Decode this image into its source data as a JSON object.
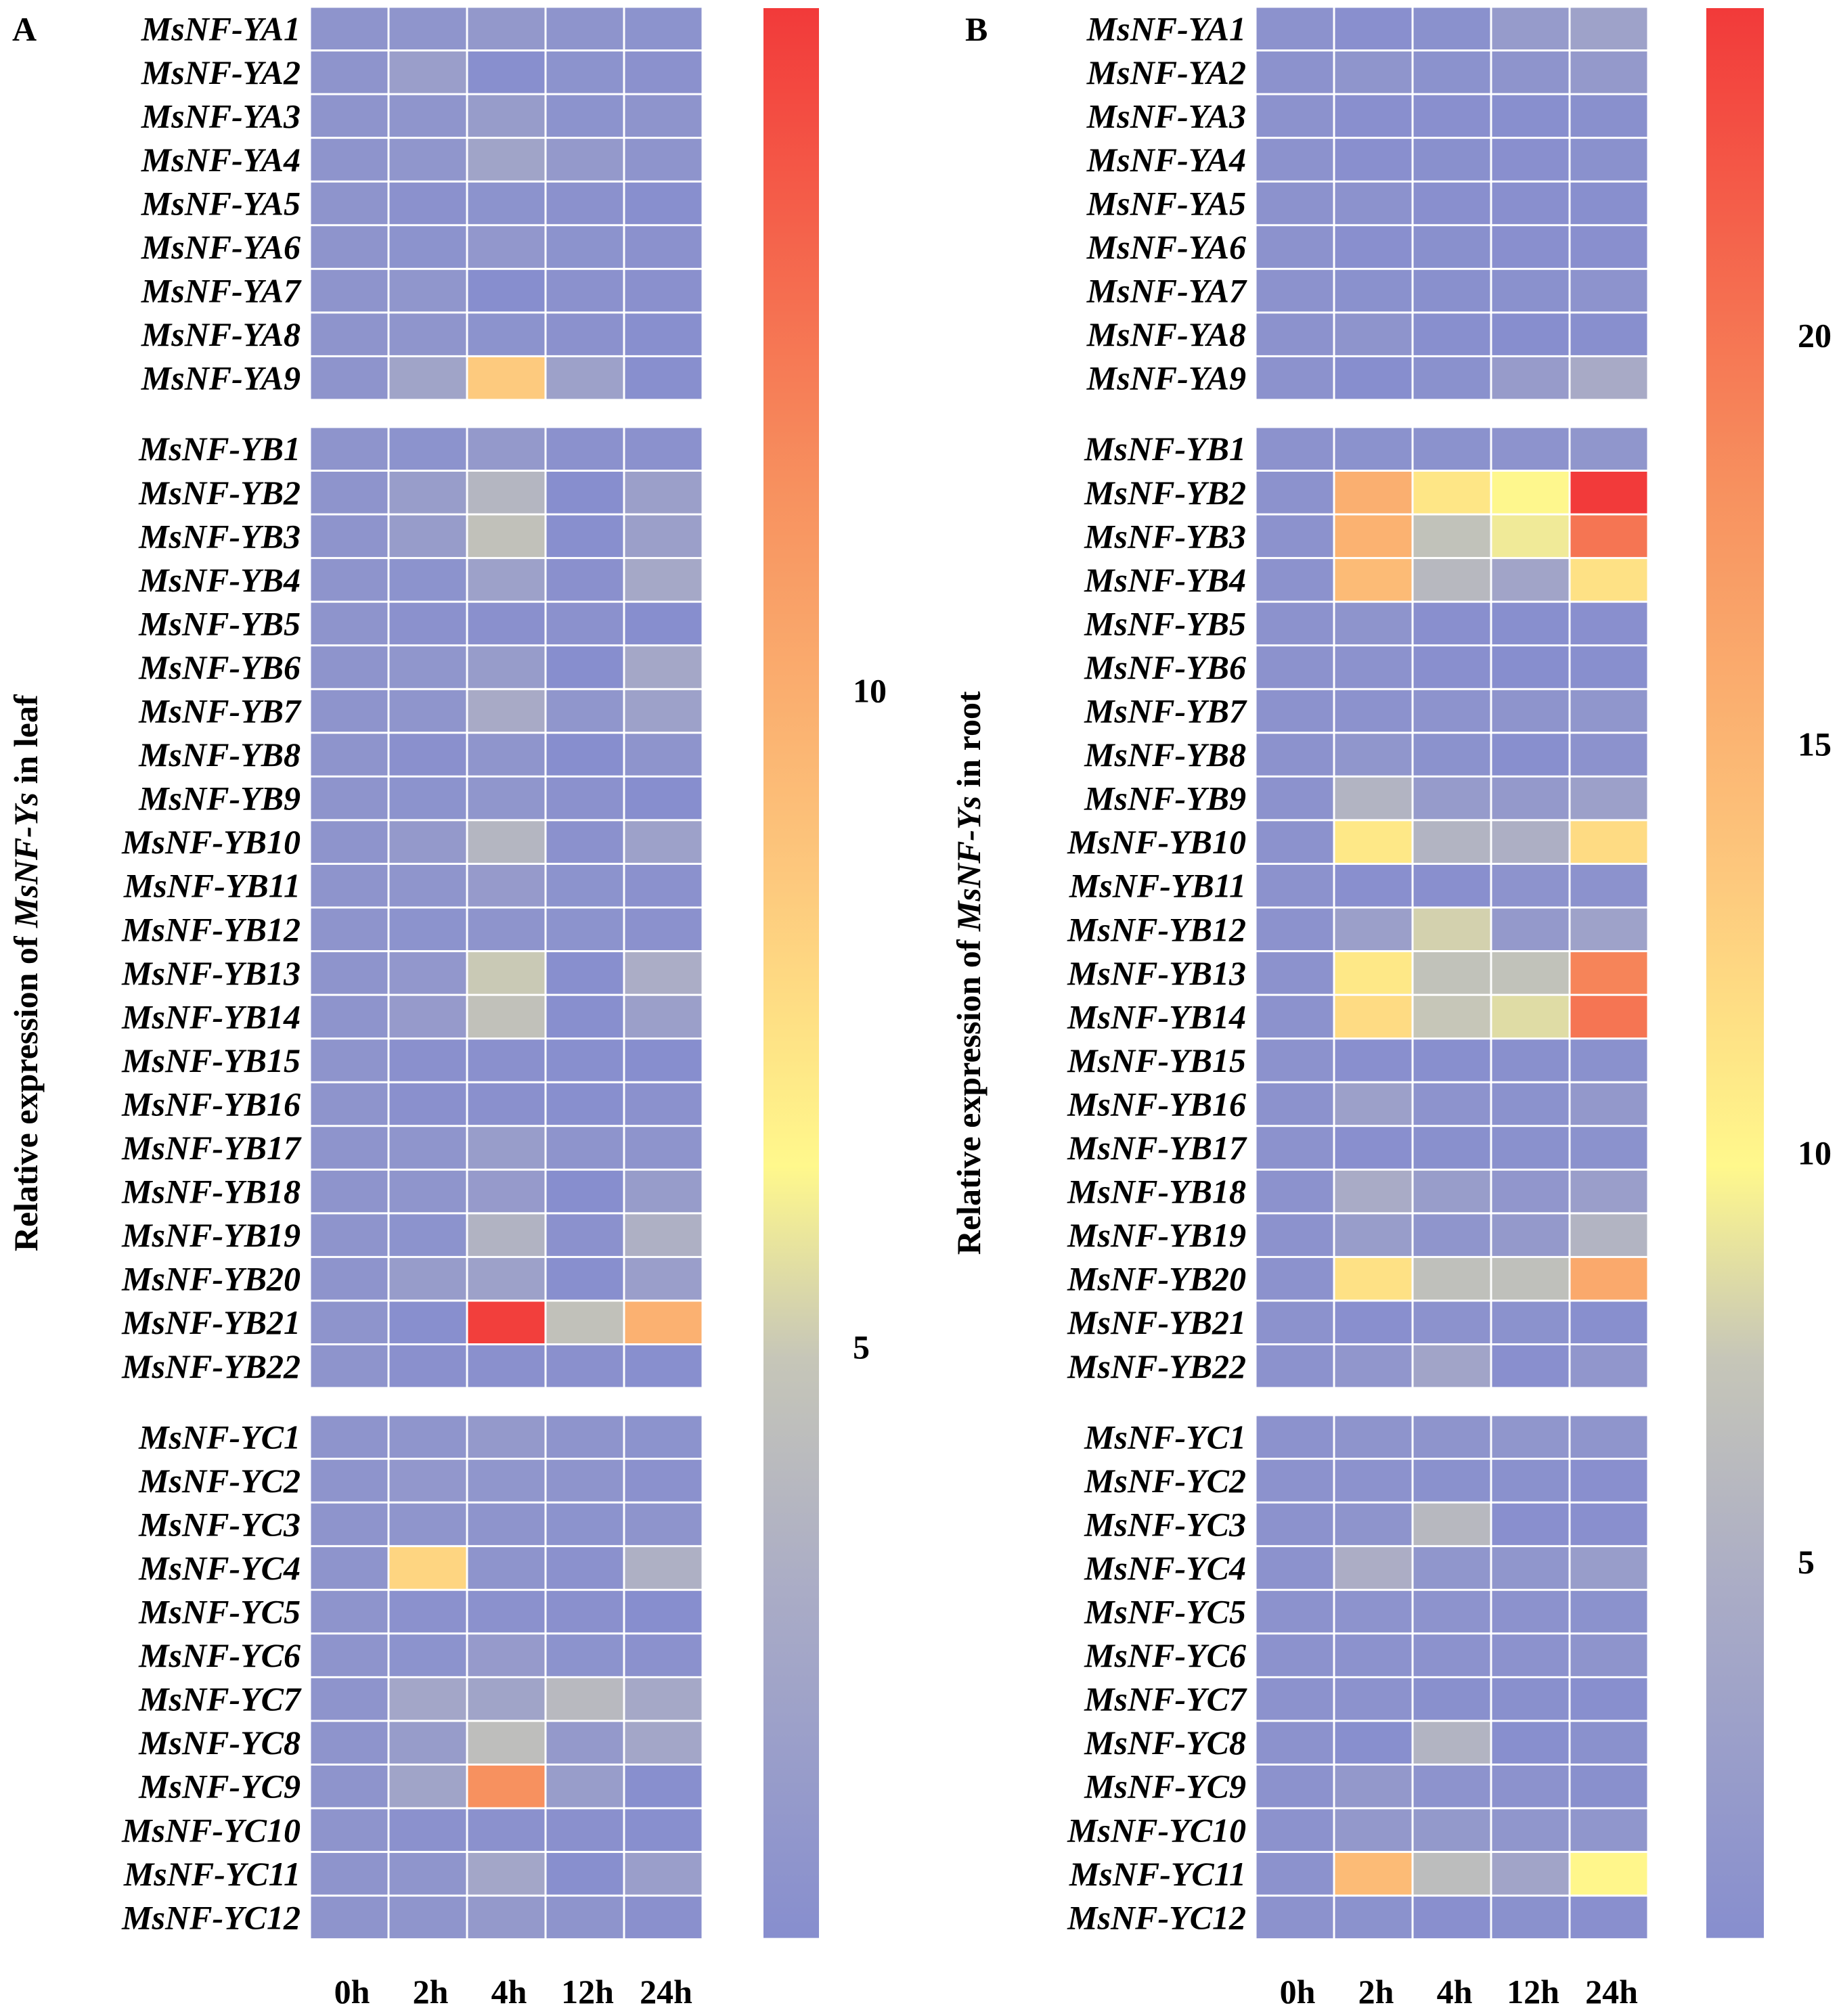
{
  "chart_data": [
    {
      "type": "heatmap",
      "panel_label": "A",
      "ylabel": "Relative expression of MsNF-Ys in leaf",
      "ylabel_prefix": "Relative expression of ",
      "ylabel_italic": "MsNF-Ys",
      "ylabel_suffix": " in leaf",
      "columns": [
        "0h",
        "2h",
        "4h",
        "12h",
        "24h"
      ],
      "colorbar": {
        "min": 0.5,
        "max": 15.2,
        "ticks": [
          5,
          10
        ]
      },
      "groups": [
        {
          "name": "NF-YA",
          "rows": [
            {
              "gene": "MsNF-YA1",
              "values": [
                1,
                1.1,
                1.4,
                1,
                0.9
              ]
            },
            {
              "gene": "MsNF-YA2",
              "values": [
                1,
                1.9,
                0.6,
                0.9,
                0.8
              ]
            },
            {
              "gene": "MsNF-YA3",
              "values": [
                1,
                1.1,
                1.7,
                0.9,
                1
              ]
            },
            {
              "gene": "MsNF-YA4",
              "values": [
                1,
                1.2,
                2.4,
                1.5,
                1
              ]
            },
            {
              "gene": "MsNF-YA5",
              "values": [
                1,
                0.8,
                0.9,
                0.8,
                0.6
              ]
            },
            {
              "gene": "MsNF-YA6",
              "values": [
                1,
                0.9,
                1.3,
                0.9,
                0.8
              ]
            },
            {
              "gene": "MsNF-YA7",
              "values": [
                1,
                1.2,
                0.5,
                0.8,
                0.7
              ]
            },
            {
              "gene": "MsNF-YA8",
              "values": [
                1,
                1.1,
                0.9,
                0.8,
                0.6
              ]
            },
            {
              "gene": "MsNF-YA9",
              "values": [
                1,
                2.4,
                8.5,
                2.2,
                0.6
              ]
            }
          ]
        },
        {
          "name": "NF-YB",
          "rows": [
            {
              "gene": "MsNF-YB1",
              "values": [
                1,
                0.9,
                1.5,
                0.8,
                0.8
              ]
            },
            {
              "gene": "MsNF-YB2",
              "values": [
                1,
                1.8,
                3.8,
                0.5,
                2
              ]
            },
            {
              "gene": "MsNF-YB3",
              "values": [
                1,
                1.7,
                4.6,
                0.6,
                2
              ]
            },
            {
              "gene": "MsNF-YB4",
              "values": [
                1,
                0.9,
                2.2,
                0.7,
                2.8
              ]
            },
            {
              "gene": "MsNF-YB5",
              "values": [
                1,
                0.8,
                0.7,
                0.8,
                0.5
              ]
            },
            {
              "gene": "MsNF-YB6",
              "values": [
                1,
                1.2,
                1.7,
                0.5,
                2.7
              ]
            },
            {
              "gene": "MsNF-YB7",
              "values": [
                1,
                1.1,
                3,
                1.2,
                2.2
              ]
            },
            {
              "gene": "MsNF-YB8",
              "values": [
                1,
                0.7,
                1.1,
                0.5,
                1
              ]
            },
            {
              "gene": "MsNF-YB9",
              "values": [
                1,
                0.9,
                1.2,
                0.8,
                0.5
              ]
            },
            {
              "gene": "MsNF-YB10",
              "values": [
                1,
                1.5,
                3.8,
                0.8,
                2.2
              ]
            },
            {
              "gene": "MsNF-YB11",
              "values": [
                1,
                1.1,
                1.6,
                0.9,
                0.8
              ]
            },
            {
              "gene": "MsNF-YB12",
              "values": [
                1,
                0.9,
                1,
                0.9,
                0.8
              ]
            },
            {
              "gene": "MsNF-YB13",
              "values": [
                1,
                1.3,
                5,
                0.6,
                3.2
              ]
            },
            {
              "gene": "MsNF-YB14",
              "values": [
                1,
                1.6,
                4.6,
                0.6,
                2
              ]
            },
            {
              "gene": "MsNF-YB15",
              "values": [
                1,
                0.7,
                0.7,
                0.6,
                0.5
              ]
            },
            {
              "gene": "MsNF-YB16",
              "values": [
                1,
                0.7,
                0.7,
                0.6,
                0.8
              ]
            },
            {
              "gene": "MsNF-YB17",
              "values": [
                1,
                1.1,
                1.8,
                1,
                1
              ]
            },
            {
              "gene": "MsNF-YB18",
              "values": [
                1,
                1.1,
                1.6,
                0.5,
                1.7
              ]
            },
            {
              "gene": "MsNF-YB19",
              "values": [
                1,
                0.9,
                3.6,
                0.8,
                3.4
              ]
            },
            {
              "gene": "MsNF-YB20",
              "values": [
                1,
                1.7,
                2.2,
                0.6,
                1.9
              ]
            },
            {
              "gene": "MsNF-YB21",
              "values": [
                1,
                0.6,
                15,
                4.6,
                9.8
              ]
            },
            {
              "gene": "MsNF-YB22",
              "values": [
                1,
                0.7,
                0.7,
                0.7,
                0.6
              ]
            }
          ]
        },
        {
          "name": "NF-YC",
          "rows": [
            {
              "gene": "MsNF-YC1",
              "values": [
                1,
                1.1,
                1.5,
                1,
                0.9
              ]
            },
            {
              "gene": "MsNF-YC2",
              "values": [
                1,
                1.3,
                1.2,
                1,
                0.8
              ]
            },
            {
              "gene": "MsNF-YC3",
              "values": [
                1,
                1.1,
                1,
                0.9,
                1
              ]
            },
            {
              "gene": "MsNF-YC4",
              "values": [
                1,
                8,
                1,
                0.8,
                3.4
              ]
            },
            {
              "gene": "MsNF-YC5",
              "values": [
                1,
                0.8,
                0.8,
                0.7,
                0.5
              ]
            },
            {
              "gene": "MsNF-YC6",
              "values": [
                1,
                0.9,
                1.6,
                0.9,
                0.8
              ]
            },
            {
              "gene": "MsNF-YC7",
              "values": [
                1,
                2.6,
                2.4,
                4,
                2.8
              ]
            },
            {
              "gene": "MsNF-YC8",
              "values": [
                1,
                1.7,
                4.4,
                1.5,
                2.6
              ]
            },
            {
              "gene": "MsNF-YC9",
              "values": [
                1,
                2.4,
                11.5,
                1.8,
                0.6
              ]
            },
            {
              "gene": "MsNF-YC10",
              "values": [
                1,
                0.8,
                0.8,
                0.7,
                0.6
              ]
            },
            {
              "gene": "MsNF-YC11",
              "values": [
                1,
                1.1,
                2.6,
                0.6,
                1.9
              ]
            },
            {
              "gene": "MsNF-YC12",
              "values": [
                1,
                1.1,
                1.5,
                1,
                0.7
              ]
            }
          ]
        }
      ]
    },
    {
      "type": "heatmap",
      "panel_label": "B",
      "ylabel": "Relative expression of MsNF-Ys in root",
      "ylabel_prefix": "Relative expression of ",
      "ylabel_italic": "MsNF-Ys",
      "ylabel_suffix": " in root",
      "columns": [
        "0h",
        "2h",
        "4h",
        "12h",
        "24h"
      ],
      "colorbar": {
        "min": 0.4,
        "max": 24,
        "ticks": [
          5,
          10,
          15,
          20
        ]
      },
      "groups": [
        {
          "name": "NF-YA",
          "rows": [
            {
              "gene": "MsNF-YA1",
              "values": [
                1,
                0.6,
                0.8,
                2.2,
                3.2
              ]
            },
            {
              "gene": "MsNF-YA2",
              "values": [
                1,
                1.4,
                0.9,
                1.3,
                2
              ]
            },
            {
              "gene": "MsNF-YA3",
              "values": [
                1,
                0.6,
                0.6,
                0.5,
                0.7
              ]
            },
            {
              "gene": "MsNF-YA4",
              "values": [
                1,
                0.6,
                0.7,
                0.6,
                0.8
              ]
            },
            {
              "gene": "MsNF-YA5",
              "values": [
                1,
                1,
                0.6,
                0.6,
                0.5
              ]
            },
            {
              "gene": "MsNF-YA6",
              "values": [
                1,
                0.6,
                0.7,
                0.6,
                0.6
              ]
            },
            {
              "gene": "MsNF-YA7",
              "values": [
                1,
                0.8,
                0.7,
                0.8,
                1.1
              ]
            },
            {
              "gene": "MsNF-YA8",
              "values": [
                1,
                1.3,
                0.5,
                0.4,
                0.5
              ]
            },
            {
              "gene": "MsNF-YA9",
              "values": [
                1,
                0.4,
                0.8,
                2.3,
                4.4
              ]
            }
          ]
        },
        {
          "name": "NF-YB",
          "rows": [
            {
              "gene": "MsNF-YB1",
              "values": [
                1,
                0.9,
                0.9,
                1.1,
                1.5
              ]
            },
            {
              "gene": "MsNF-YB2",
              "values": [
                1,
                15.5,
                11.2,
                9.8,
                24
              ]
            },
            {
              "gene": "MsNF-YB3",
              "values": [
                1,
                15.3,
                7,
                9.2,
                20
              ]
            },
            {
              "gene": "MsNF-YB4",
              "values": [
                1,
                14.5,
                6,
                3.5,
                11.5
              ]
            },
            {
              "gene": "MsNF-YB5",
              "values": [
                1,
                1.3,
                0.6,
                0.5,
                0.6
              ]
            },
            {
              "gene": "MsNF-YB6",
              "values": [
                1,
                1,
                0.6,
                0.4,
                0.5
              ]
            },
            {
              "gene": "MsNF-YB7",
              "values": [
                1,
                1,
                1.1,
                1.2,
                1.5
              ]
            },
            {
              "gene": "MsNF-YB8",
              "values": [
                1,
                1.5,
                0.9,
                0.5,
                1
              ]
            },
            {
              "gene": "MsNF-YB9",
              "values": [
                1,
                5.5,
                2.2,
                2,
                3
              ]
            },
            {
              "gene": "MsNF-YB10",
              "values": [
                1,
                11,
                5.5,
                5,
                12
              ]
            },
            {
              "gene": "MsNF-YB11",
              "values": [
                1,
                0.6,
                0.6,
                1.1,
                1
              ]
            },
            {
              "gene": "MsNF-YB12",
              "values": [
                1,
                2.8,
                8,
                2,
                3.2
              ]
            },
            {
              "gene": "MsNF-YB13",
              "values": [
                1,
                11,
                7,
                7,
                19
              ]
            },
            {
              "gene": "MsNF-YB14",
              "values": [
                1,
                12,
                7.5,
                8.5,
                20
              ]
            },
            {
              "gene": "MsNF-YB15",
              "values": [
                1,
                0.6,
                0.5,
                0.7,
                0.8
              ]
            },
            {
              "gene": "MsNF-YB16",
              "values": [
                1,
                3,
                1.1,
                0.9,
                1.8
              ]
            },
            {
              "gene": "MsNF-YB17",
              "values": [
                1,
                0.6,
                0.7,
                0.8,
                0.9
              ]
            },
            {
              "gene": "MsNF-YB18",
              "values": [
                1,
                4.5,
                2.5,
                1.6,
                2.7
              ]
            },
            {
              "gene": "MsNF-YB19",
              "values": [
                1,
                2.5,
                1.4,
                2,
                5.5
              ]
            },
            {
              "gene": "MsNF-YB20",
              "values": [
                1,
                11.5,
                6.8,
                6.8,
                16
              ]
            },
            {
              "gene": "MsNF-YB21",
              "values": [
                1,
                0.6,
                1,
                0.9,
                0.5
              ]
            },
            {
              "gene": "MsNF-YB22",
              "values": [
                1,
                1.6,
                3.5,
                0.6,
                1.6
              ]
            }
          ]
        },
        {
          "name": "NF-YC",
          "rows": [
            {
              "gene": "MsNF-YC1",
              "values": [
                1,
                1.2,
                1.3,
                1.5,
                1.4
              ]
            },
            {
              "gene": "MsNF-YC2",
              "values": [
                1,
                1,
                0.8,
                0.8,
                0.6
              ]
            },
            {
              "gene": "MsNF-YC3",
              "values": [
                1,
                1.2,
                6,
                0.6,
                0.6
              ]
            },
            {
              "gene": "MsNF-YC4",
              "values": [
                1,
                4.8,
                1.5,
                1.5,
                2.5
              ]
            },
            {
              "gene": "MsNF-YC5",
              "values": [
                1,
                1.1,
                1.1,
                1,
                0.9
              ]
            },
            {
              "gene": "MsNF-YC6",
              "values": [
                1,
                1,
                1,
                1,
                1.3
              ]
            },
            {
              "gene": "MsNF-YC7",
              "values": [
                1,
                1,
                0.7,
                0.7,
                0.5
              ]
            },
            {
              "gene": "MsNF-YC8",
              "values": [
                1,
                0.5,
                5.5,
                0.5,
                0.8
              ]
            },
            {
              "gene": "MsNF-YC9",
              "values": [
                1,
                1.8,
                1.1,
                1,
                0.7
              ]
            },
            {
              "gene": "MsNF-YC10",
              "values": [
                1,
                1.8,
                1.9,
                1.5,
                1.5
              ]
            },
            {
              "gene": "MsNF-YC11",
              "values": [
                1,
                14.5,
                6.5,
                3.5,
                10
              ]
            },
            {
              "gene": "MsNF-YC12",
              "values": [
                1,
                0.9,
                0.6,
                0.8,
                0.6
              ]
            }
          ]
        }
      ]
    }
  ]
}
